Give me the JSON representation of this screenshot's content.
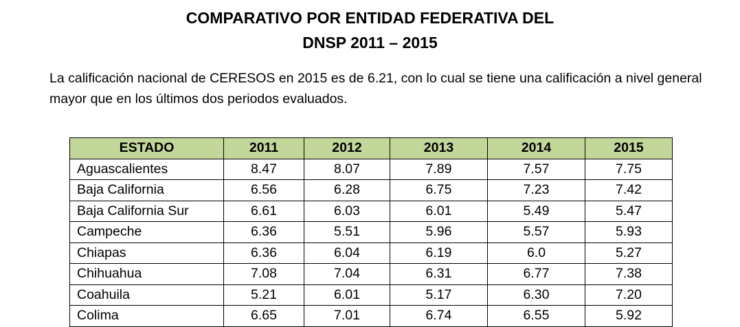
{
  "title_line1": "COMPARATIVO POR ENTIDAD FEDERATIVA DEL",
  "title_line2": "DNSP 2011 – 2015",
  "paragraph": "La calificación nacional de CERESOS en 2015 es de 6.21, con lo cual se tiene una calificación a nivel general mayor que en los últimos dos periodos evaluados.",
  "header_color": "#c4d79b",
  "table": {
    "headers": [
      "ESTADO",
      "2011",
      "2012",
      "2013",
      "2014",
      "2015"
    ],
    "rows": [
      [
        "Aguascalientes",
        "8.47",
        "8.07",
        "7.89",
        "7.57",
        "7.75"
      ],
      [
        "Baja California",
        "6.56",
        "6.28",
        "6.75",
        "7.23",
        "7.42"
      ],
      [
        "Baja California Sur",
        "6.61",
        "6.03",
        "6.01",
        "5.49",
        "5.47"
      ],
      [
        "Campeche",
        "6.36",
        "5.51",
        "5.96",
        "5.57",
        "5.93"
      ],
      [
        "Chiapas",
        "6.36",
        "6.04",
        "6.19",
        "6.0",
        "5.27"
      ],
      [
        "Chihuahua",
        "7.08",
        "7.04",
        "6.31",
        "6.77",
        "7.38"
      ],
      [
        "Coahuila",
        "5.21",
        "6.01",
        "5.17",
        "6.30",
        "7.20"
      ],
      [
        "Colima",
        "6.65",
        "7.01",
        "6.74",
        "6.55",
        "5.92"
      ]
    ]
  }
}
